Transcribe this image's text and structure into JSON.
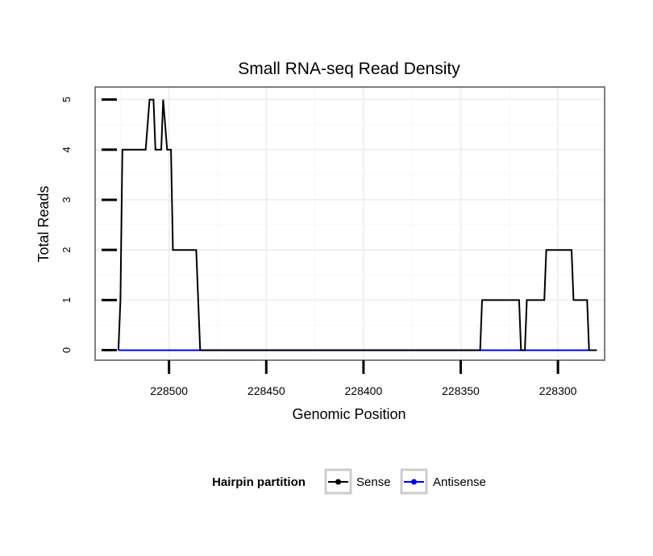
{
  "chart_data": {
    "type": "line",
    "title": "Small RNA-seq Read Density",
    "xlabel": "Genomic Position",
    "ylabel": "Total Reads",
    "x_reversed": true,
    "xlim": [
      228276,
      228538
    ],
    "ylim": [
      -0.2,
      5.25
    ],
    "x_ticks": [
      228500,
      228450,
      228400,
      228350,
      228300
    ],
    "x_tick_labels": [
      "228500",
      "228450",
      "228400",
      "228350",
      "228300"
    ],
    "y_ticks": [
      0,
      1,
      2,
      3,
      4,
      5
    ],
    "y_tick_labels": [
      "0",
      "1",
      "2",
      "3",
      "4",
      "5"
    ],
    "grid": true,
    "legend": {
      "title": "Hairpin partition",
      "position": "bottom"
    },
    "series": [
      {
        "name": "Sense",
        "color": "#000000",
        "points": [
          [
            228526,
            0
          ],
          [
            228525,
            1
          ],
          [
            228524,
            4
          ],
          [
            228512,
            4
          ],
          [
            228510,
            5
          ],
          [
            228508,
            5
          ],
          [
            228507,
            4
          ],
          [
            228504,
            4
          ],
          [
            228503,
            5
          ],
          [
            228501,
            4
          ],
          [
            228499,
            4
          ],
          [
            228498,
            2
          ],
          [
            228486,
            2
          ],
          [
            228484,
            0
          ],
          [
            228340,
            0
          ],
          [
            228339,
            1
          ],
          [
            228320,
            1
          ],
          [
            228319,
            0
          ],
          [
            228317,
            0
          ],
          [
            228316,
            1
          ],
          [
            228307,
            1
          ],
          [
            228306,
            2
          ],
          [
            228293,
            2
          ],
          [
            228292,
            1
          ],
          [
            228285,
            1
          ],
          [
            228284,
            0
          ],
          [
            228280,
            0
          ]
        ]
      },
      {
        "name": "Antisense",
        "color": "#0000ff",
        "points": [
          [
            228526,
            0
          ],
          [
            228284,
            0
          ]
        ]
      }
    ]
  }
}
